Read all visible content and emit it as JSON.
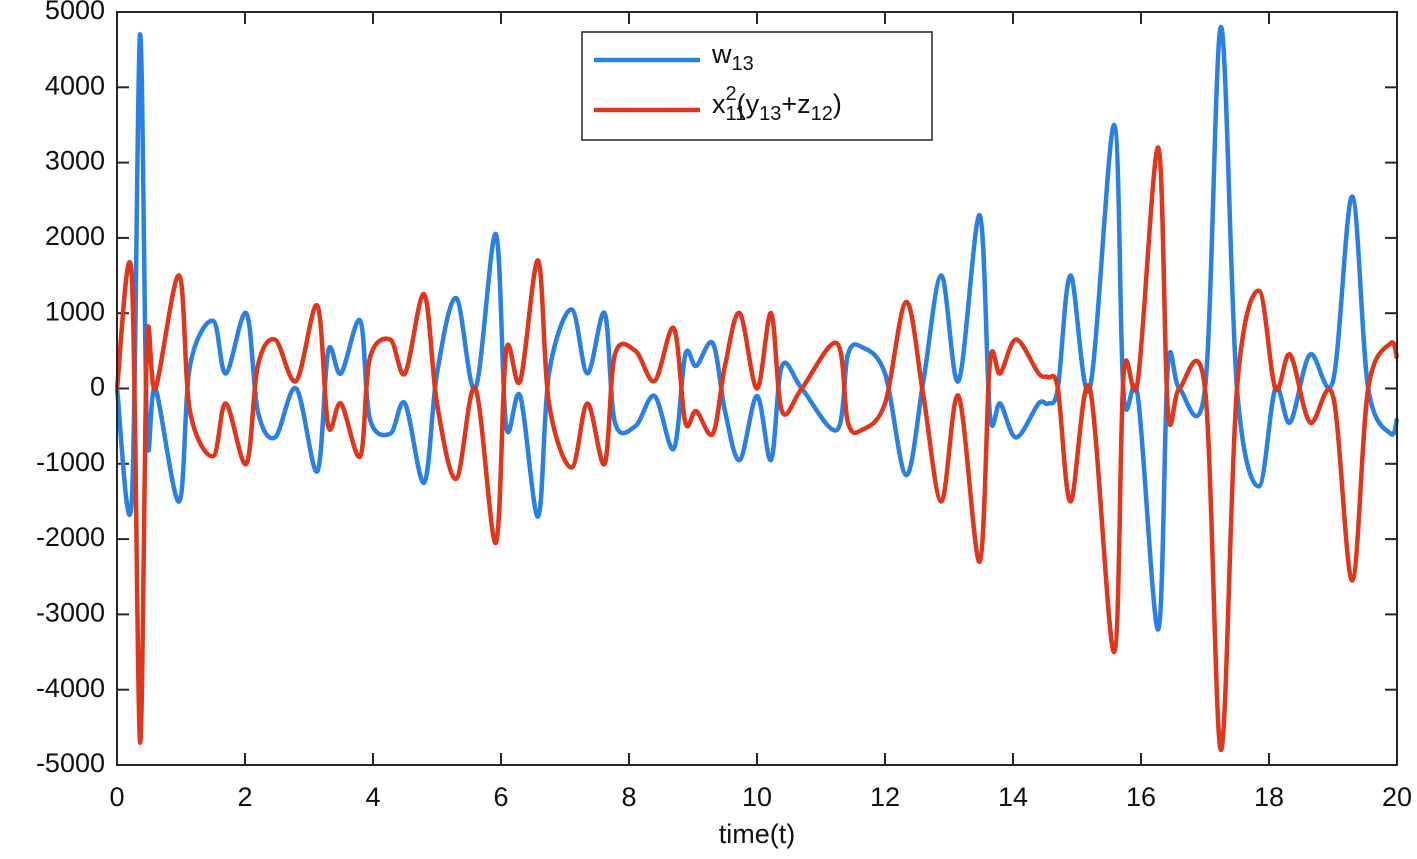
{
  "chart_data": {
    "type": "line",
    "xlabel": "time(t)",
    "x": [
      0,
      0.23,
      0.36,
      0.47,
      0.6,
      0.97,
      1.14,
      1.5,
      1.7,
      2.02,
      2.2,
      2.47,
      2.8,
      3.13,
      3.3,
      3.5,
      3.8,
      3.95,
      4.27,
      4.5,
      4.8,
      5.0,
      5.3,
      5.6,
      5.92,
      6.08,
      6.3,
      6.58,
      6.75,
      7.1,
      7.35,
      7.62,
      7.78,
      8.1,
      8.4,
      8.7,
      8.88,
      9.05,
      9.31,
      9.5,
      9.73,
      10.0,
      10.22,
      10.39,
      10.7,
      11.25,
      11.42,
      11.64,
      12.0,
      12.33,
      12.6,
      12.88,
      13.15,
      13.48,
      13.64,
      13.8,
      14.05,
      14.4,
      14.55,
      14.7,
      14.9,
      15.2,
      15.58,
      15.73,
      15.95,
      16.27,
      16.42,
      16.6,
      17.0,
      17.25,
      17.5,
      17.84,
      18.1,
      18.33,
      18.64,
      19.0,
      19.3,
      19.55,
      19.9,
      20
    ],
    "series": [
      {
        "name": "w_{13}",
        "color": "#2b80e3",
        "values": [
          0,
          -1500,
          4700,
          -600,
          0,
          -1500,
          300,
          900,
          200,
          1000,
          -300,
          -650,
          0,
          -1100,
          500,
          200,
          900,
          -400,
          -600,
          -200,
          -1250,
          200,
          1200,
          0,
          2050,
          -500,
          -100,
          -1700,
          200,
          1050,
          200,
          1000,
          -450,
          -500,
          -100,
          -800,
          450,
          300,
          600,
          -300,
          -950,
          -100,
          -950,
          300,
          0,
          -550,
          450,
          550,
          200,
          -1150,
          100,
          1500,
          100,
          2300,
          -350,
          -200,
          -650,
          -200,
          -200,
          0,
          1500,
          0,
          3500,
          -100,
          -100,
          -3200,
          300,
          0,
          0,
          4800,
          0,
          -1300,
          0,
          -450,
          450,
          100,
          2550,
          0,
          -600,
          -400
        ]
      },
      {
        "name": "x_{11}^{2}(y_{13}+z_{12})",
        "color": "#e0361b",
        "values": [
          0,
          1500,
          -4700,
          600,
          0,
          1500,
          -300,
          -900,
          -200,
          -1000,
          300,
          650,
          100,
          1100,
          -500,
          -200,
          -900,
          400,
          650,
          200,
          1250,
          -200,
          -1200,
          0,
          -2050,
          500,
          100,
          1700,
          -200,
          -1050,
          -200,
          -1000,
          450,
          500,
          100,
          800,
          -450,
          -300,
          -600,
          300,
          1000,
          0,
          1000,
          -300,
          0,
          600,
          -450,
          -550,
          -200,
          1150,
          -100,
          -1500,
          -100,
          -2300,
          350,
          200,
          650,
          200,
          150,
          0,
          -1500,
          0,
          -3500,
          200,
          100,
          3200,
          -300,
          0,
          0,
          -4800,
          0,
          1300,
          0,
          450,
          -450,
          -100,
          -2550,
          0,
          600,
          400
        ]
      }
    ],
    "xlim": [
      0,
      20
    ],
    "xticks": [
      0,
      2,
      4,
      6,
      8,
      10,
      12,
      14,
      16,
      18,
      20
    ],
    "ylim": [
      -5000,
      5000
    ],
    "yticks": [
      -5000,
      -4000,
      -3000,
      -2000,
      -1000,
      0,
      1000,
      2000,
      3000,
      4000,
      5000
    ],
    "legend": "top"
  }
}
